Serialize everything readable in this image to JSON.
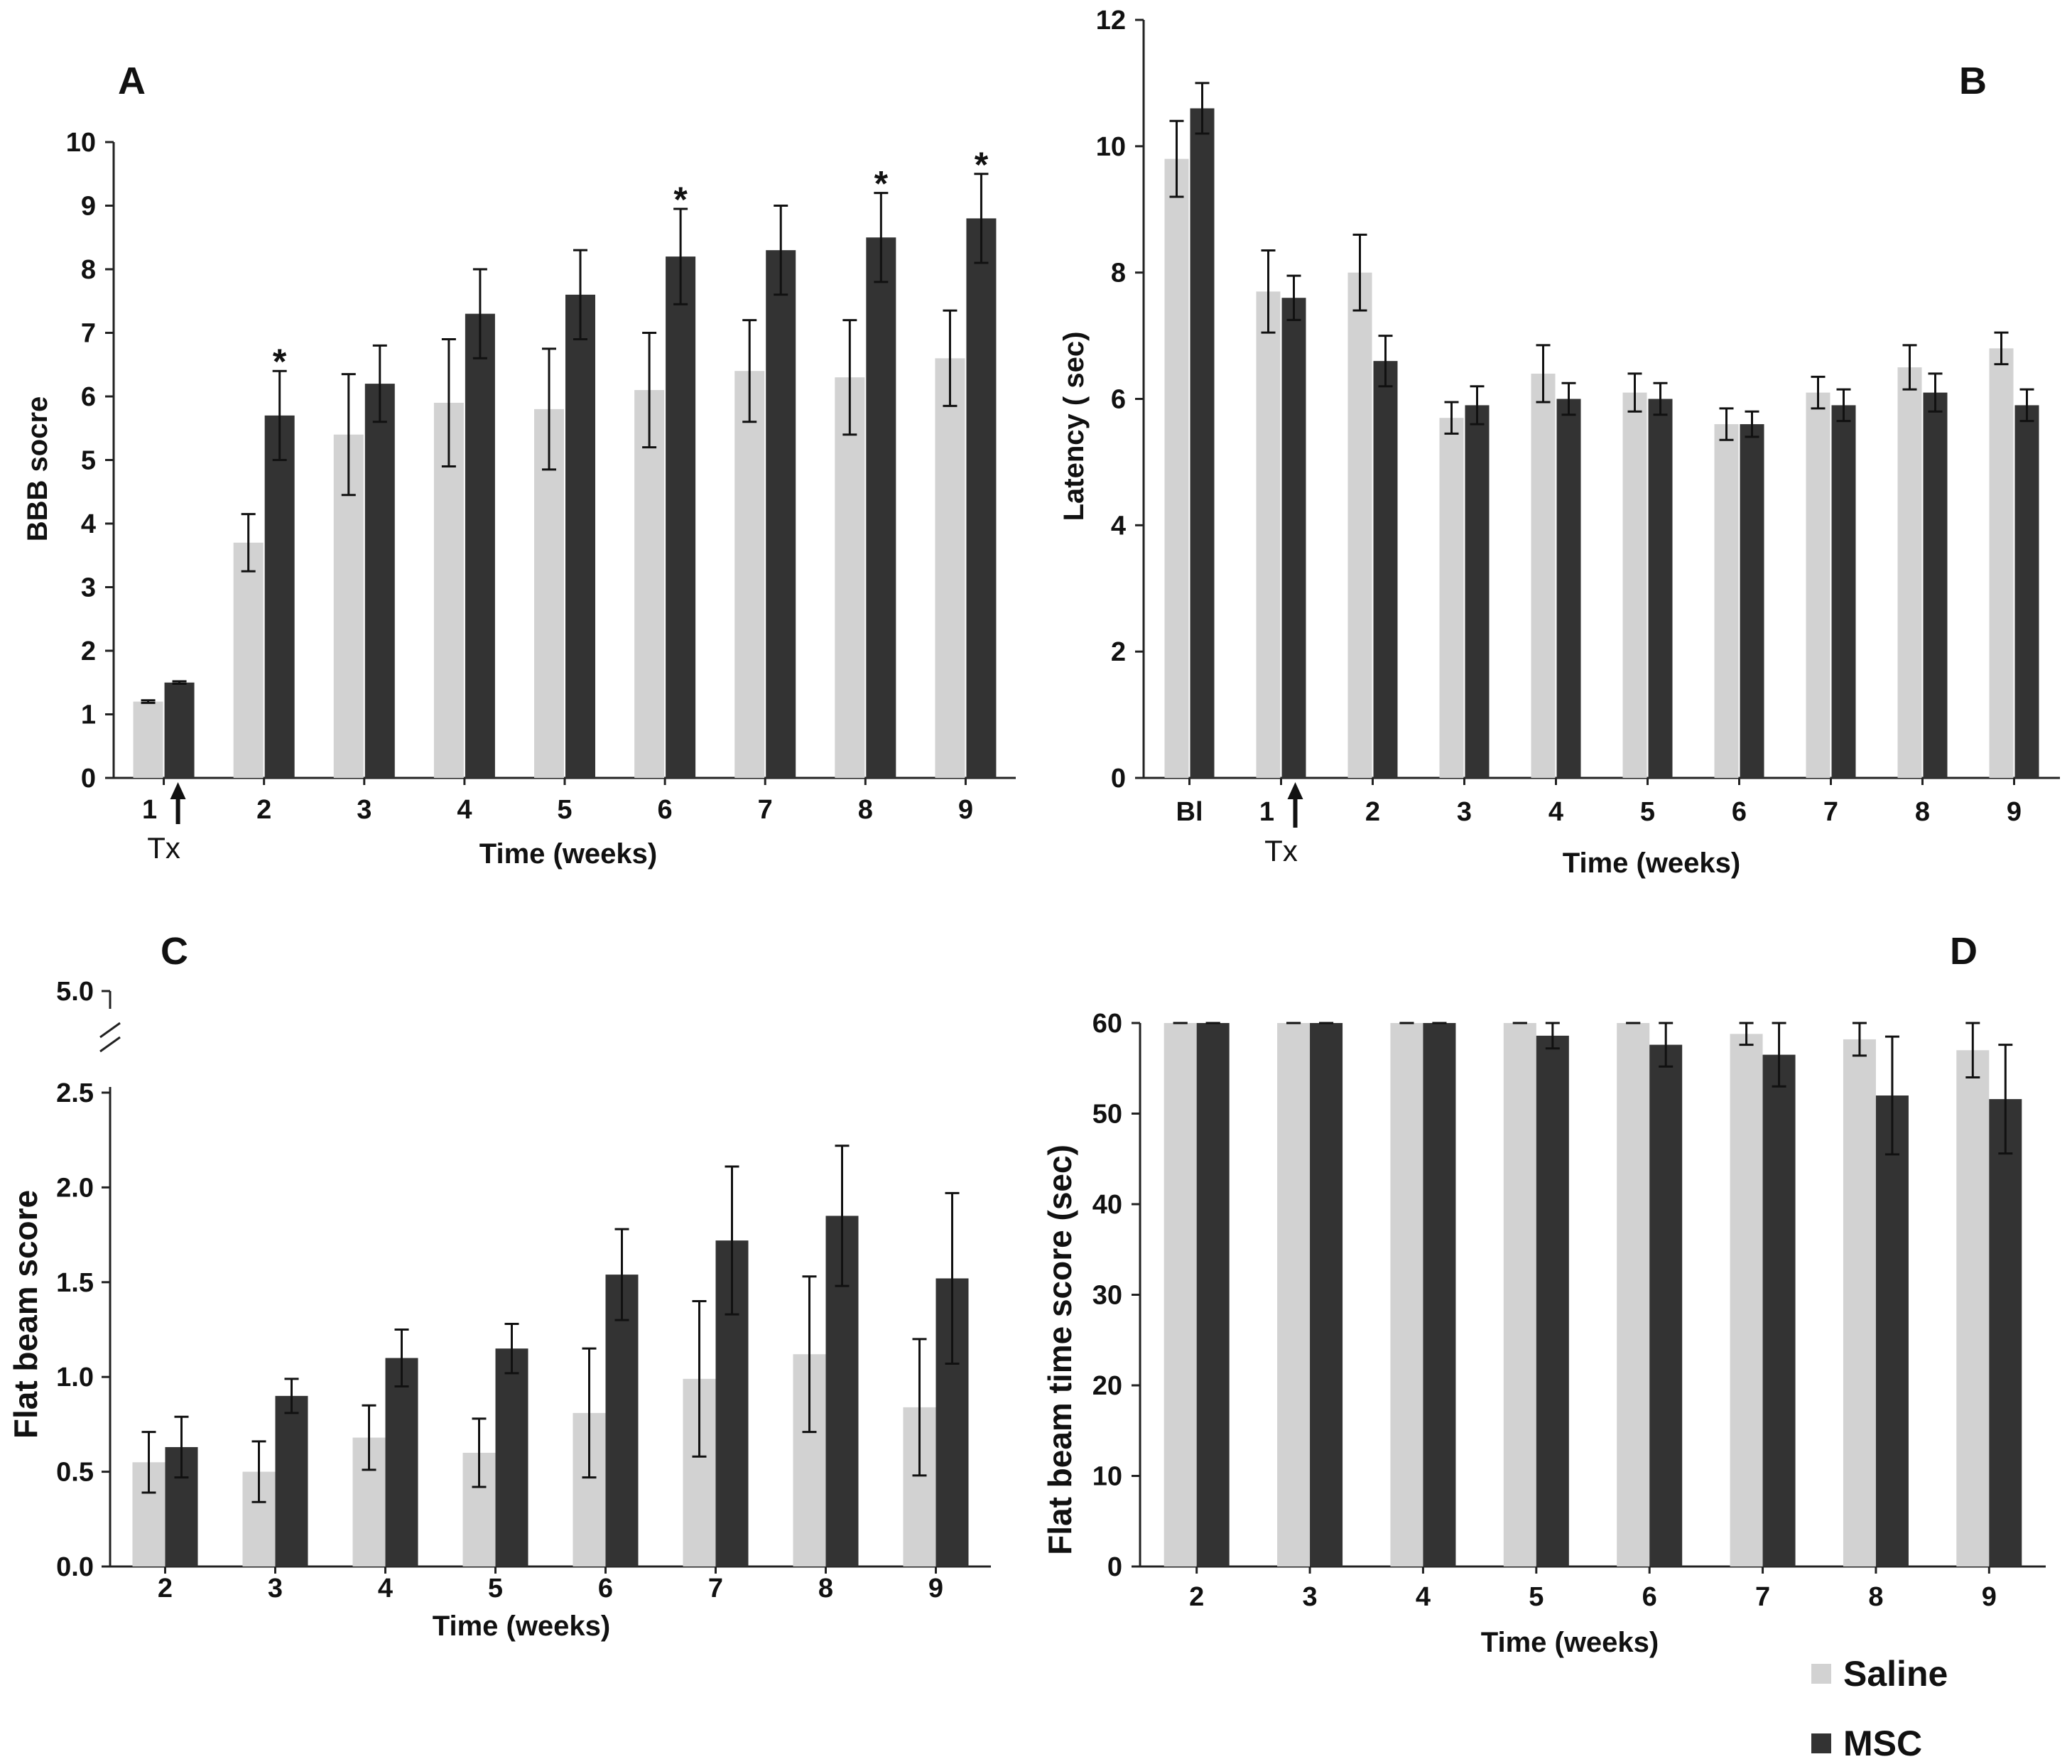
{
  "legend": {
    "items": [
      {
        "label": "Saline",
        "color": "#d2d2d2"
      },
      {
        "label": "MSC",
        "color": "#333333"
      }
    ]
  },
  "chart_data": [
    {
      "panel": "A",
      "type": "bar",
      "xlabel": "Time (weeks)",
      "ylabel": "BBB socre",
      "ylim": [
        0,
        10
      ],
      "yticks": [
        "0",
        "1",
        "2",
        "3",
        "4",
        "5",
        "6",
        "7",
        "8",
        "9",
        "10"
      ],
      "categories": [
        "1",
        "2",
        "3",
        "4",
        "5",
        "6",
        "7",
        "8",
        "9"
      ],
      "marker_category": "1",
      "marker_label": "Tx",
      "series": [
        {
          "name": "Saline",
          "values": [
            1.2,
            3.7,
            5.4,
            5.9,
            5.8,
            6.1,
            6.4,
            6.3,
            6.6
          ],
          "errors": [
            0.02,
            0.45,
            0.95,
            1.0,
            0.95,
            0.9,
            0.8,
            0.9,
            0.75
          ]
        },
        {
          "name": "MSC",
          "values": [
            1.5,
            5.7,
            6.2,
            7.3,
            7.6,
            8.2,
            8.3,
            8.5,
            8.8
          ],
          "errors": [
            0.02,
            0.7,
            0.6,
            0.7,
            0.7,
            0.75,
            0.7,
            0.7,
            0.7
          ]
        }
      ],
      "significance": [
        {
          "category": "2",
          "label": "*"
        },
        {
          "category": "6",
          "label": "*"
        },
        {
          "category": "8",
          "label": "*"
        },
        {
          "category": "9",
          "label": "*"
        }
      ]
    },
    {
      "panel": "B",
      "type": "bar",
      "xlabel": "Time (weeks)",
      "ylabel": "Latency ( sec)",
      "ylim": [
        0,
        12
      ],
      "yticks": [
        "0",
        "2",
        "4",
        "6",
        "8",
        "10",
        "12"
      ],
      "categories": [
        "Bl",
        "1",
        "2",
        "3",
        "4",
        "5",
        "6",
        "7",
        "8",
        "9"
      ],
      "marker_category": "1",
      "marker_label": "Tx",
      "series": [
        {
          "name": "Saline",
          "values": [
            9.8,
            7.7,
            8.0,
            5.7,
            6.4,
            6.1,
            5.6,
            6.1,
            6.5,
            6.8
          ],
          "errors": [
            0.6,
            0.65,
            0.6,
            0.25,
            0.45,
            0.3,
            0.25,
            0.25,
            0.35,
            0.25
          ]
        },
        {
          "name": "MSC",
          "values": [
            10.6,
            7.6,
            6.6,
            5.9,
            6.0,
            6.0,
            5.6,
            5.9,
            6.1,
            5.9
          ],
          "errors": [
            0.4,
            0.35,
            0.4,
            0.3,
            0.25,
            0.25,
            0.2,
            0.25,
            0.3,
            0.25
          ]
        }
      ]
    },
    {
      "panel": "C",
      "type": "bar",
      "xlabel": "Time (weeks)",
      "ylabel": "Flat beam score",
      "ylim": [
        0,
        2.5
      ],
      "yticks": [
        "0.0",
        "0.5",
        "1.0",
        "1.5",
        "2.0",
        "2.5"
      ],
      "axis_break": {
        "after": "2.5",
        "top_label": "5.0"
      },
      "categories": [
        "2",
        "3",
        "4",
        "5",
        "6",
        "7",
        "8",
        "9"
      ],
      "series": [
        {
          "name": "Saline",
          "values": [
            0.55,
            0.5,
            0.68,
            0.6,
            0.81,
            0.99,
            1.12,
            0.84
          ],
          "errors": [
            0.16,
            0.16,
            0.17,
            0.18,
            0.34,
            0.41,
            0.41,
            0.36
          ]
        },
        {
          "name": "MSC",
          "values": [
            0.63,
            0.9,
            1.1,
            1.15,
            1.54,
            1.72,
            1.85,
            1.52
          ],
          "errors": [
            0.16,
            0.09,
            0.15,
            0.13,
            0.24,
            0.39,
            0.37,
            0.45
          ]
        }
      ]
    },
    {
      "panel": "D",
      "type": "bar",
      "xlabel": "Time (weeks)",
      "ylabel": "Flat beam time score (sec)",
      "ylim": [
        0,
        60
      ],
      "yticks": [
        "0",
        "10",
        "20",
        "30",
        "40",
        "50",
        "60"
      ],
      "categories": [
        "2",
        "3",
        "4",
        "5",
        "6",
        "7",
        "8",
        "9"
      ],
      "series": [
        {
          "name": "Saline",
          "values": [
            60,
            60,
            60,
            60,
            60,
            58.8,
            58.2,
            57.0
          ],
          "errors": [
            0,
            0,
            0,
            0,
            0,
            1.2,
            1.8,
            3.0
          ]
        },
        {
          "name": "MSC",
          "values": [
            60,
            60,
            60,
            58.6,
            57.6,
            56.5,
            52.0,
            51.6
          ],
          "errors": [
            0,
            0,
            0,
            1.4,
            2.4,
            3.5,
            6.5,
            6.0
          ]
        }
      ]
    }
  ]
}
